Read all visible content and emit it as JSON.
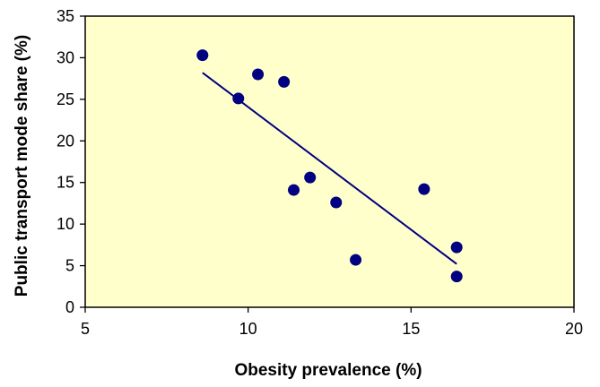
{
  "colors": {
    "plot_background": "#FFFFCC",
    "marker": "#000080",
    "trendline": "#000080",
    "axis": "#000000"
  },
  "chart_data": {
    "type": "scatter",
    "xlabel": "Obesity prevalence (%)",
    "ylabel": "Public transport mode share (%)",
    "xlim": [
      5,
      20
    ],
    "ylim": [
      0,
      35
    ],
    "xticks": [
      5,
      10,
      15,
      20
    ],
    "yticks": [
      0,
      5,
      10,
      15,
      20,
      25,
      30,
      35
    ],
    "grid": false,
    "legend": "none",
    "series": [
      {
        "points": [
          {
            "x": 8.6,
            "y": 30.3
          },
          {
            "x": 9.7,
            "y": 25.1
          },
          {
            "x": 10.3,
            "y": 28.0
          },
          {
            "x": 11.1,
            "y": 27.1
          },
          {
            "x": 11.4,
            "y": 14.1
          },
          {
            "x": 11.9,
            "y": 15.6
          },
          {
            "x": 12.7,
            "y": 12.6
          },
          {
            "x": 13.3,
            "y": 5.7
          },
          {
            "x": 15.4,
            "y": 14.2
          },
          {
            "x": 16.4,
            "y": 7.2
          },
          {
            "x": 16.4,
            "y": 3.7
          }
        ]
      }
    ],
    "trendline": {
      "type": "linear",
      "start": {
        "x": 8.6,
        "y": 28.2
      },
      "end": {
        "x": 16.4,
        "y": 5.2
      }
    }
  }
}
